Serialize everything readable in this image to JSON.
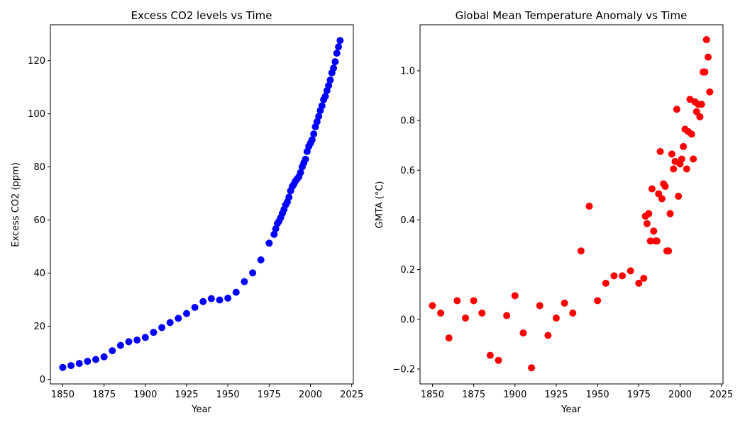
{
  "chart_data": [
    {
      "type": "scatter",
      "title": "Excess CO2 levels vs Time",
      "xlabel": "Year",
      "ylabel": "Excess CO2 (ppm)",
      "xlim": [
        1842.5,
        2026
      ],
      "ylim": [
        -1.7,
        133.5
      ],
      "xticks": [
        1850,
        1875,
        1900,
        1925,
        1950,
        1975,
        2000,
        2025
      ],
      "yticks": [
        0,
        20,
        40,
        60,
        80,
        100,
        120
      ],
      "color": "#0000ff",
      "series": [
        {
          "name": "Excess CO2",
          "x": [
            1850,
            1855,
            1860,
            1865,
            1870,
            1875,
            1880,
            1885,
            1890,
            1895,
            1900,
            1905,
            1910,
            1915,
            1920,
            1925,
            1930,
            1935,
            1940,
            1945,
            1950,
            1955,
            1960,
            1965,
            1970,
            1975,
            1978,
            1979,
            1980,
            1981,
            1982,
            1983,
            1984,
            1985,
            1986,
            1987,
            1988,
            1989,
            1990,
            1991,
            1992,
            1993,
            1994,
            1995,
            1996,
            1997,
            1998,
            1999,
            2000,
            2001,
            2002,
            2003,
            2004,
            2005,
            2006,
            2007,
            2008,
            2009,
            2010,
            2011,
            2012,
            2013,
            2014,
            2015,
            2016,
            2017,
            2018
          ],
          "values": [
            4.5,
            5.2,
            6.0,
            6.8,
            7.5,
            8.5,
            10.8,
            12.8,
            14.2,
            14.8,
            15.8,
            17.7,
            19.5,
            21.4,
            23.0,
            24.8,
            27.1,
            29.3,
            30.4,
            29.9,
            30.6,
            32.8,
            36.8,
            40.1,
            45.0,
            51.3,
            54.6,
            56.7,
            58.7,
            59.6,
            60.9,
            62.5,
            64.0,
            65.7,
            66.8,
            68.6,
            71.0,
            72.6,
            73.5,
            74.7,
            75.5,
            76.3,
            77.9,
            80.0,
            81.5,
            82.9,
            85.8,
            87.7,
            88.9,
            90.2,
            92.4,
            95.1,
            97.0,
            99.0,
            101.2,
            103.0,
            105.3,
            106.5,
            108.7,
            110.6,
            112.7,
            115.4,
            117.2,
            119.6,
            122.8,
            125.2,
            127.6
          ]
        }
      ]
    },
    {
      "type": "scatter",
      "title": "Global Mean Temperature Anomaly vs Time",
      "xlabel": "Year",
      "ylabel": "GMTA (°C)",
      "xlim": [
        1842.5,
        2026
      ],
      "ylim": [
        -0.26,
        1.185
      ],
      "xticks": [
        1850,
        1875,
        1900,
        1925,
        1950,
        1975,
        2000,
        2025
      ],
      "yticks": [
        -0.2,
        0.0,
        0.2,
        0.4,
        0.6,
        0.8,
        1.0
      ],
      "ytick_labels": [
        "−0.2",
        "0.0",
        "0.2",
        "0.4",
        "0.6",
        "0.8",
        "1.0"
      ],
      "color": "#ff0000",
      "series": [
        {
          "name": "GMTA",
          "x": [
            1850,
            1855,
            1860,
            1865,
            1870,
            1875,
            1880,
            1885,
            1890,
            1895,
            1900,
            1905,
            1910,
            1915,
            1920,
            1925,
            1930,
            1935,
            1940,
            1945,
            1950,
            1955,
            1960,
            1965,
            1970,
            1975,
            1978,
            1979,
            1980,
            1981,
            1982,
            1983,
            1984,
            1985,
            1986,
            1987,
            1988,
            1989,
            1990,
            1991,
            1992,
            1993,
            1994,
            1995,
            1996,
            1997,
            1998,
            1999,
            2000,
            2001,
            2002,
            2003,
            2004,
            2005,
            2006,
            2007,
            2008,
            2009,
            2010,
            2011,
            2012,
            2013,
            2014,
            2015,
            2016,
            2017,
            2018
          ],
          "values": [
            0.055,
            0.025,
            -0.075,
            0.075,
            0.005,
            0.075,
            0.025,
            -0.145,
            -0.165,
            0.015,
            0.095,
            -0.055,
            -0.195,
            0.055,
            -0.065,
            0.005,
            0.065,
            0.025,
            0.275,
            0.455,
            0.075,
            0.145,
            0.175,
            0.175,
            0.195,
            0.145,
            0.165,
            0.415,
            0.385,
            0.425,
            0.315,
            0.525,
            0.355,
            0.315,
            0.315,
            0.505,
            0.675,
            0.485,
            0.545,
            0.535,
            0.275,
            0.275,
            0.425,
            0.665,
            0.605,
            0.635,
            0.845,
            0.495,
            0.625,
            0.645,
            0.695,
            0.765,
            0.605,
            0.755,
            0.885,
            0.745,
            0.645,
            0.875,
            0.835,
            0.865,
            0.815,
            0.865,
            0.995,
            0.995,
            1.125,
            1.055,
            0.915
          ]
        }
      ]
    }
  ]
}
